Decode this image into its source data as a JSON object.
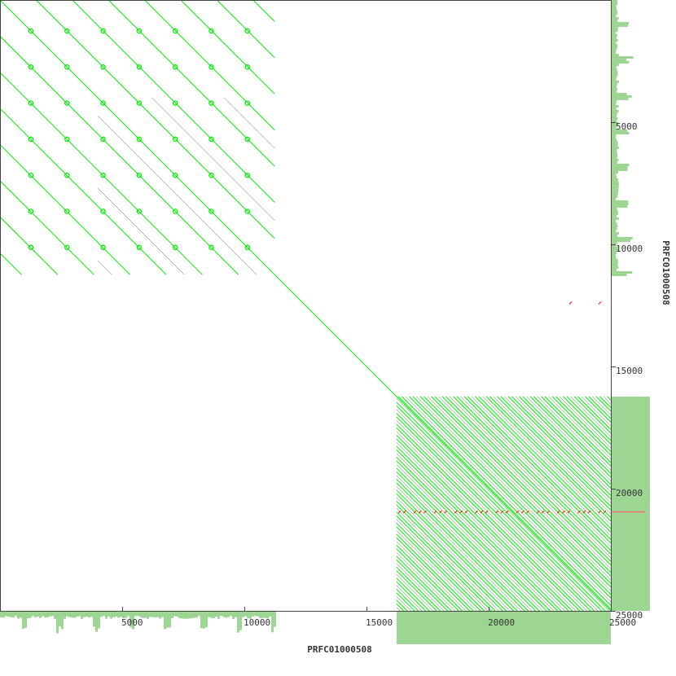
{
  "chart_data": {
    "type": "scatter",
    "subtype": "dot-plot",
    "xlabel": "PRFC01000508",
    "ylabel": "PRFC01000508",
    "xlim": [
      0,
      25000
    ],
    "ylim": [
      0,
      25000
    ],
    "y_inverted": true,
    "x_ticks": [
      5000,
      10000,
      15000,
      20000,
      25000
    ],
    "y_ticks": [
      5000,
      10000,
      15000,
      20000,
      25000
    ],
    "grid": false,
    "main_diagonal": {
      "start": 0,
      "end": 25000,
      "color": "#00ee00"
    },
    "repeat_blocks": [
      {
        "name": "block-1",
        "start": 0,
        "end": 11240,
        "period": 1480,
        "forward_color": "#00ee00",
        "faint_color": "#555555"
      },
      {
        "name": "block-2",
        "start": 16230,
        "end": 25000,
        "period": 150,
        "forward_color": "#00ee00",
        "faint_color": "#555555"
      }
    ],
    "reverse_hits": {
      "y": 20950,
      "x_range": [
        16300,
        24800
      ],
      "color": "#ff0000"
    },
    "reverse_hits_2": {
      "y": 12400,
      "x": [
        23300,
        24500
      ],
      "color": "#ff0000"
    },
    "coverage_color": "#9dd693",
    "marker_color": "#f07070"
  }
}
